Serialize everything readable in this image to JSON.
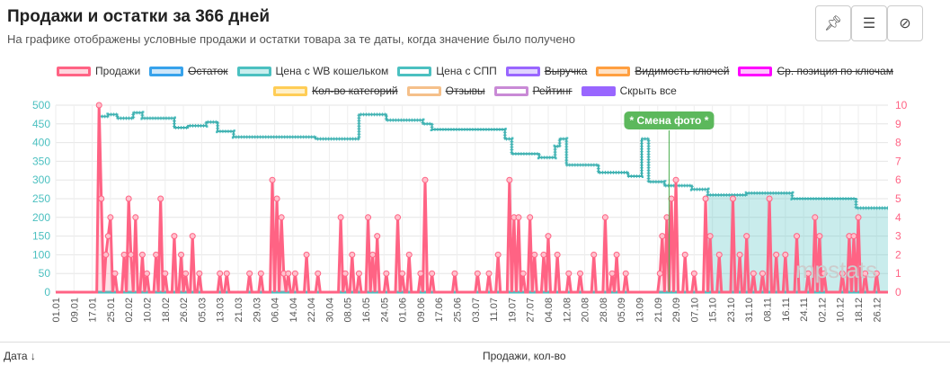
{
  "header": {
    "title": "Продажи и остатки за 366 дней",
    "subtitle": "На графике отображены условные продажи и остатки товара за те даты, когда значение было получено"
  },
  "toolbar": {
    "pin": "pin-icon",
    "list": "list-icon",
    "hide": "eye-off-icon"
  },
  "legend": [
    {
      "label": "Продажи",
      "color": "#ff6384",
      "fill": "#ffd6de",
      "active": true
    },
    {
      "label": "Остаток",
      "color": "#36a2eb",
      "fill": "#cde6f9",
      "active": false
    },
    {
      "label": "Цена с WB кошельком",
      "color": "#4bc0c0",
      "fill": "#c8eeee",
      "active": true
    },
    {
      "label": "Цена с СПП",
      "color": "#4bc0c0",
      "fill": "#ffffff",
      "active": true
    },
    {
      "label": "Выручка",
      "color": "#9966ff",
      "fill": "#e0d4ff",
      "active": false
    },
    {
      "label": "Видимость ключей",
      "color": "#ff9f40",
      "fill": "#ffe1c4",
      "active": false
    },
    {
      "label": "Ср. позиция по ключам",
      "color": "#ff00ff",
      "fill": "#ffc4ff",
      "active": false
    },
    {
      "label": "Кол-во категорий",
      "color": "#ffcd56",
      "fill": "#fff0c8",
      "active": false
    },
    {
      "label": "Отзывы",
      "color": "#f5c08a",
      "fill": "#ffffff",
      "active": false
    },
    {
      "label": "Рейтинг",
      "color": "#c98ad6",
      "fill": "#ffffff",
      "active": false
    },
    {
      "label": "Скрыть все",
      "color": "#9966ff",
      "fill": "#9966ff",
      "active": true
    }
  ],
  "chart_data": {
    "type": "line",
    "days": 366,
    "x_ticks": [
      "01.01",
      "09.01",
      "17.01",
      "25.01",
      "02.02",
      "10.02",
      "18.02",
      "26.02",
      "05.03",
      "13.03",
      "21.03",
      "29.03",
      "06.04",
      "14.04",
      "22.04",
      "30.04",
      "08.05",
      "16.05",
      "24.05",
      "01.06",
      "09.06",
      "17.06",
      "25.06",
      "03.07",
      "11.07",
      "19.07",
      "27.07",
      "04.08",
      "12.08",
      "20.08",
      "28.08",
      "05.09",
      "13.09",
      "21.09",
      "29.09",
      "07.10",
      "15.10",
      "23.10",
      "31.10",
      "08.11",
      "16.11",
      "24.11",
      "02.12",
      "10.12",
      "18.12",
      "26.12"
    ],
    "tick_step_days": 8,
    "y_left": {
      "min": 0,
      "max": 500,
      "ticks": [
        "0",
        "50",
        "100",
        "150",
        "200",
        "250",
        "300",
        "350",
        "400",
        "450",
        "500"
      ]
    },
    "y_right": {
      "min": 0,
      "max": 10,
      "ticks": [
        "0",
        "1",
        "2",
        "3",
        "4",
        "5",
        "6",
        "7",
        "8",
        "9",
        "10"
      ]
    },
    "price_steps": [
      [
        19,
        470
      ],
      [
        23,
        475
      ],
      [
        27,
        465
      ],
      [
        34,
        480
      ],
      [
        38,
        465
      ],
      [
        52,
        440
      ],
      [
        58,
        445
      ],
      [
        66,
        455
      ],
      [
        71,
        430
      ],
      [
        78,
        415
      ],
      [
        114,
        410
      ],
      [
        133,
        475
      ],
      [
        145,
        460
      ],
      [
        161,
        450
      ],
      [
        165,
        435
      ],
      [
        197,
        410
      ],
      [
        200,
        370
      ],
      [
        212,
        360
      ],
      [
        219,
        390
      ],
      [
        221,
        410
      ],
      [
        224,
        340
      ],
      [
        238,
        320
      ],
      [
        251,
        310
      ],
      [
        257,
        410
      ],
      [
        260,
        295
      ],
      [
        267,
        285
      ],
      [
        279,
        275
      ],
      [
        286,
        260
      ],
      [
        303,
        265
      ],
      [
        323,
        250
      ],
      [
        351,
        225
      ],
      [
        365,
        225
      ]
    ],
    "price_fill_from_day": 286,
    "sales": [
      [
        19,
        10
      ],
      [
        20,
        5
      ],
      [
        22,
        2
      ],
      [
        23,
        3
      ],
      [
        24,
        4
      ],
      [
        26,
        1
      ],
      [
        30,
        2
      ],
      [
        32,
        5
      ],
      [
        33,
        2
      ],
      [
        35,
        4
      ],
      [
        38,
        2
      ],
      [
        40,
        1
      ],
      [
        44,
        2
      ],
      [
        46,
        5
      ],
      [
        48,
        1
      ],
      [
        52,
        3
      ],
      [
        55,
        2
      ],
      [
        57,
        1
      ],
      [
        60,
        3
      ],
      [
        63,
        1
      ],
      [
        72,
        1
      ],
      [
        75,
        1
      ],
      [
        85,
        1
      ],
      [
        90,
        1
      ],
      [
        95,
        6
      ],
      [
        97,
        5
      ],
      [
        99,
        4
      ],
      [
        100,
        1
      ],
      [
        102,
        1
      ],
      [
        105,
        1
      ],
      [
        110,
        2
      ],
      [
        115,
        1
      ],
      [
        125,
        4
      ],
      [
        127,
        1
      ],
      [
        130,
        2
      ],
      [
        133,
        1
      ],
      [
        137,
        4
      ],
      [
        139,
        2
      ],
      [
        141,
        3
      ],
      [
        145,
        1
      ],
      [
        150,
        4
      ],
      [
        152,
        1
      ],
      [
        155,
        2
      ],
      [
        160,
        1
      ],
      [
        162,
        6
      ],
      [
        165,
        1
      ],
      [
        175,
        1
      ],
      [
        185,
        1
      ],
      [
        190,
        1
      ],
      [
        194,
        2
      ],
      [
        199,
        6
      ],
      [
        201,
        4
      ],
      [
        203,
        4
      ],
      [
        205,
        1
      ],
      [
        208,
        4
      ],
      [
        210,
        2
      ],
      [
        214,
        2
      ],
      [
        216,
        3
      ],
      [
        220,
        2
      ],
      [
        225,
        1
      ],
      [
        230,
        1
      ],
      [
        236,
        2
      ],
      [
        241,
        4
      ],
      [
        244,
        1
      ],
      [
        246,
        2
      ],
      [
        250,
        1
      ],
      [
        265,
        1
      ],
      [
        266,
        3
      ],
      [
        268,
        4
      ],
      [
        270,
        5
      ],
      [
        272,
        6
      ],
      [
        276,
        2
      ],
      [
        280,
        1
      ],
      [
        285,
        5
      ],
      [
        287,
        3
      ],
      [
        291,
        2
      ],
      [
        297,
        5
      ],
      [
        300,
        2
      ],
      [
        303,
        3
      ],
      [
        306,
        1
      ],
      [
        310,
        1
      ],
      [
        313,
        5
      ],
      [
        316,
        2
      ],
      [
        320,
        2
      ],
      [
        325,
        3
      ],
      [
        330,
        1
      ],
      [
        333,
        4
      ],
      [
        335,
        3
      ],
      [
        337,
        1
      ],
      [
        345,
        1
      ],
      [
        348,
        3
      ],
      [
        350,
        3
      ],
      [
        352,
        4
      ],
      [
        355,
        1
      ],
      [
        360,
        1
      ]
    ],
    "annotation": {
      "day": 269,
      "label": "* Смена фото *"
    }
  },
  "table": {
    "col_date": "Дата ↓",
    "col_sales": "Продажи, кол-во"
  },
  "watermark": "mpstats"
}
